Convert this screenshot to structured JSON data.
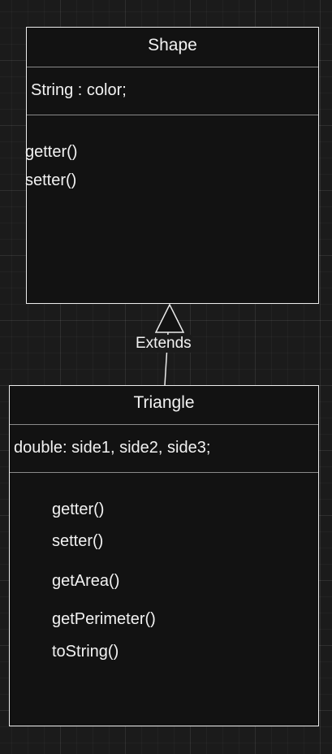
{
  "diagram": {
    "classes": [
      {
        "name": "Shape",
        "attributes": [
          "String : color;"
        ],
        "methods": [
          "getter()",
          "setter()"
        ]
      },
      {
        "name": "Triangle",
        "attributes": [
          "double: side1, side2, side3;"
        ],
        "methods": [
          "getter()",
          "setter()",
          "getArea()",
          "getPerimeter()",
          "toString()"
        ]
      }
    ],
    "relationship": {
      "type": "generalization",
      "label": "Extends",
      "from": "Triangle",
      "to": "Shape"
    }
  }
}
